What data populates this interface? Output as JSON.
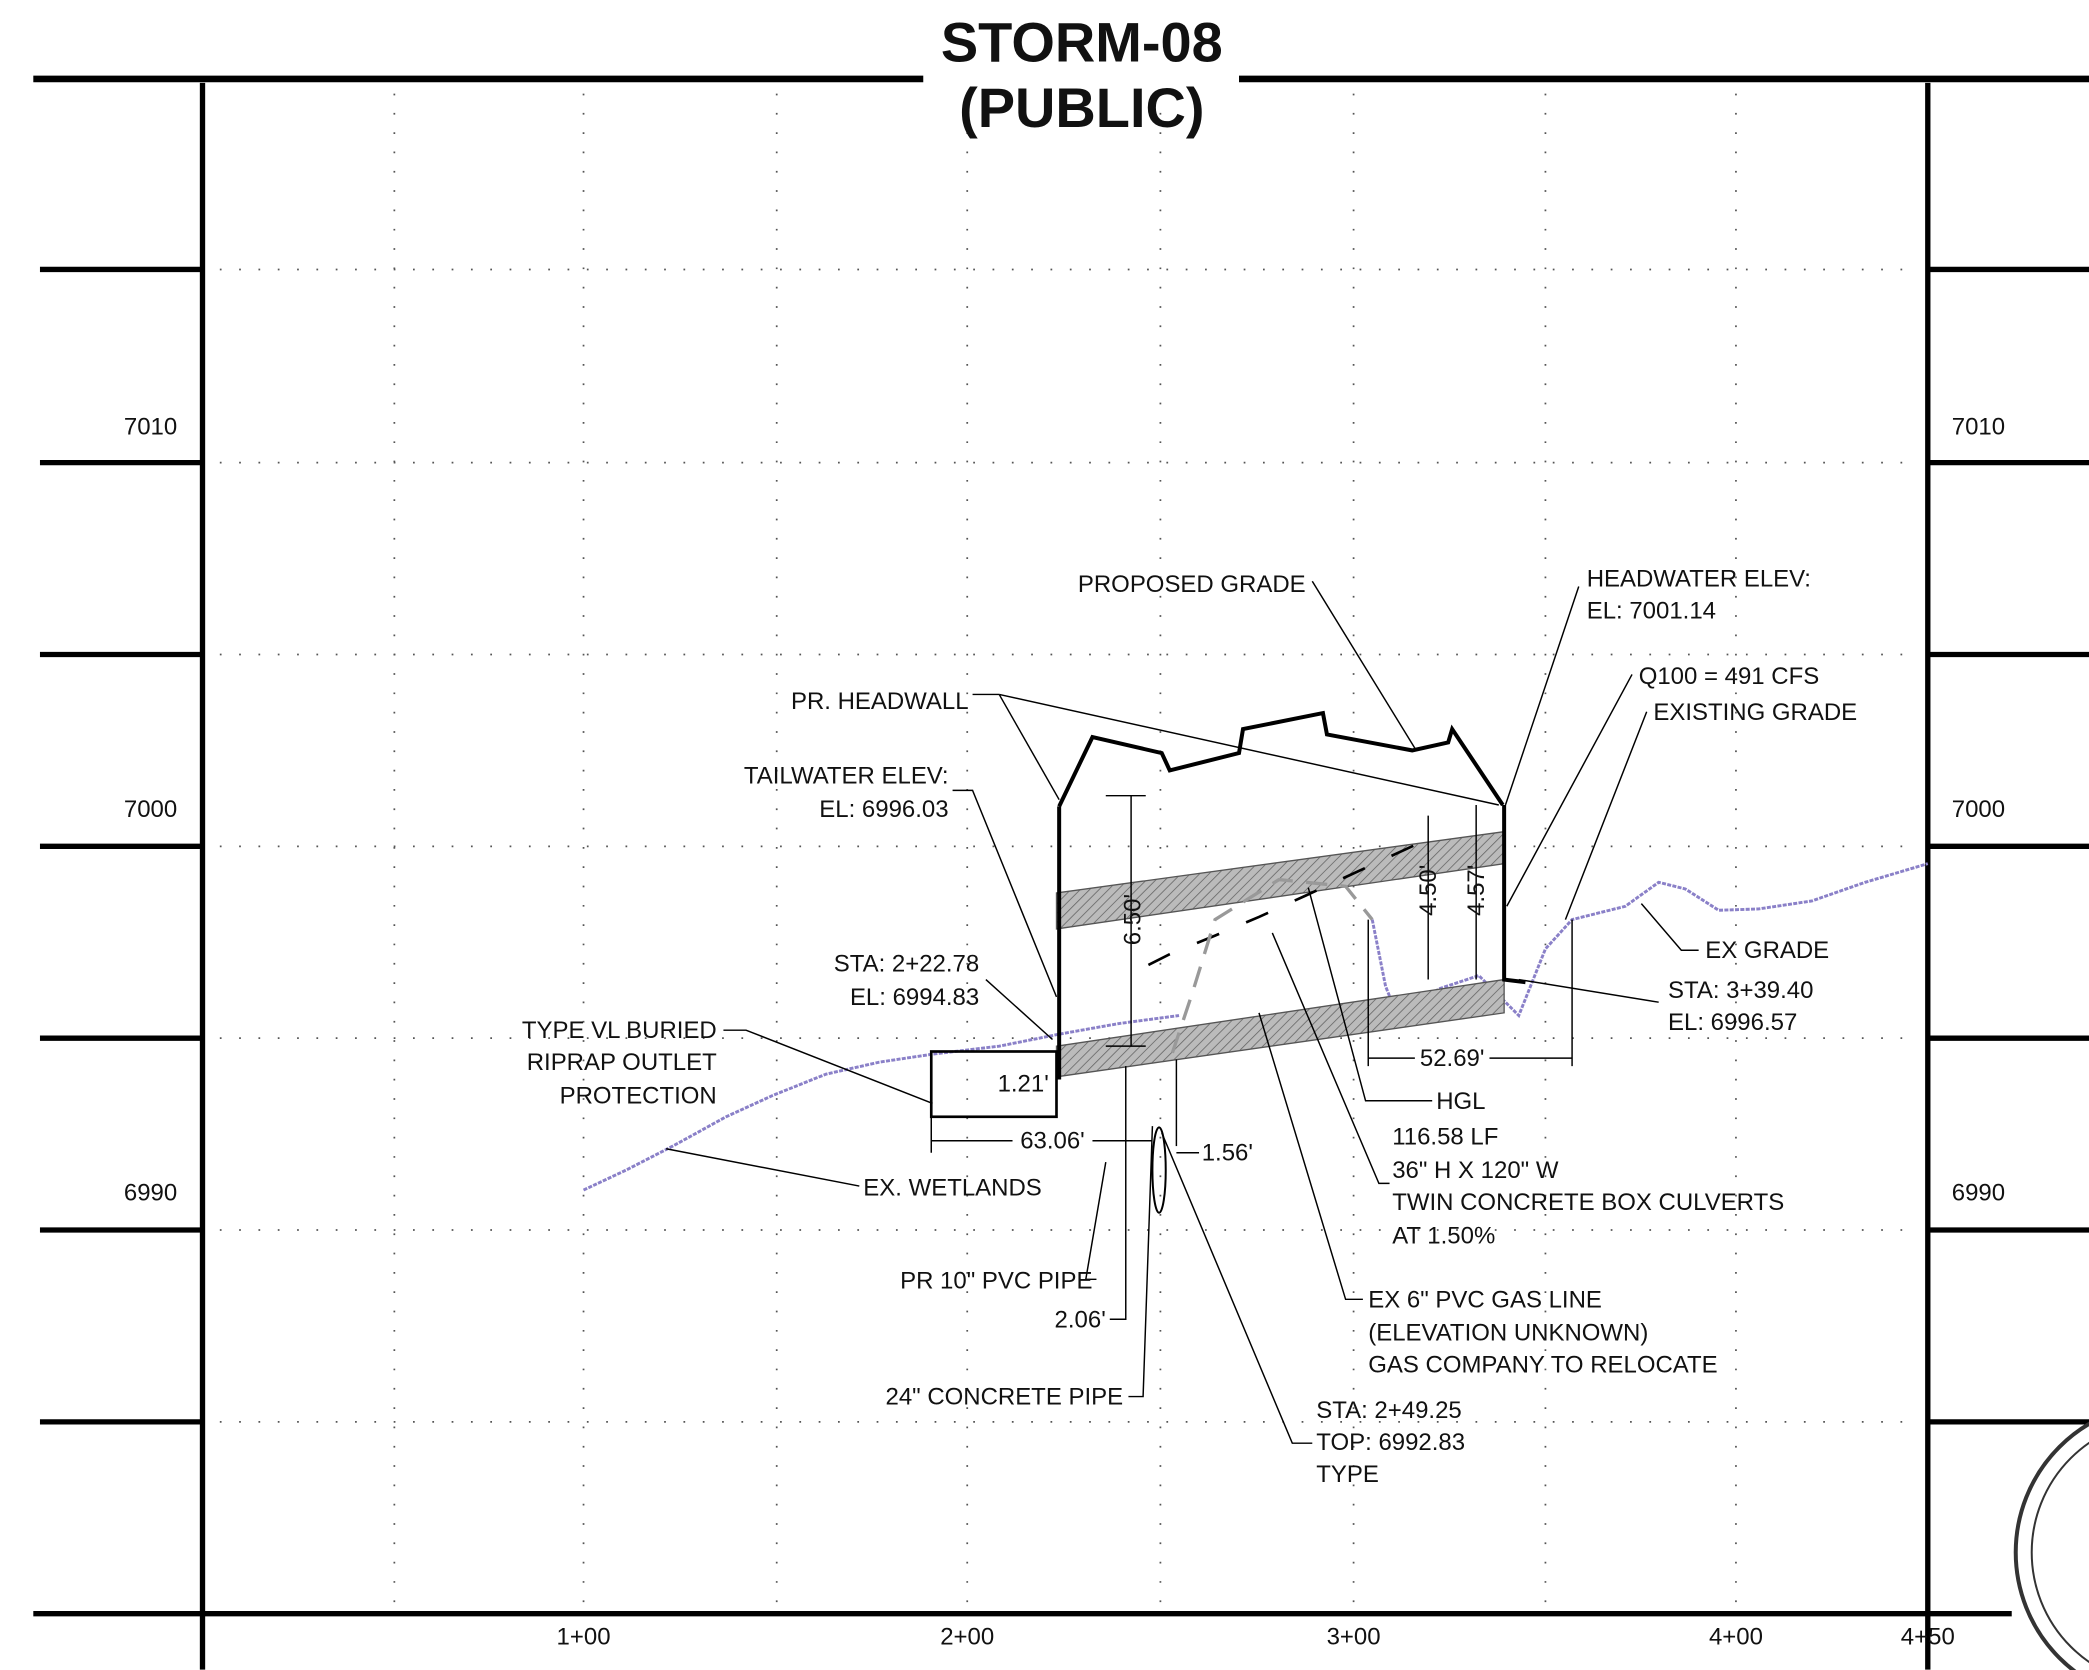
{
  "title": {
    "line1": "STORM-08",
    "line2": "(PUBLIC)"
  },
  "elevations": [
    "7010",
    "7000",
    "6990"
  ],
  "stations": [
    "1+00",
    "2+00",
    "3+00",
    "4+00",
    "4+50"
  ],
  "annotations": {
    "proposed_grade": "PROPOSED GRADE",
    "headwater": [
      "HEADWATER ELEV:",
      "EL: 7001.14"
    ],
    "q100": "Q100 = 491 CFS",
    "existing_grade": "EXISTING GRADE",
    "pr_headwall": "PR. HEADWALL",
    "tailwater": [
      "TAILWATER ELEV:",
      "EL: 6996.03"
    ],
    "sta_inlet": [
      "STA: 2+22.78",
      "EL: 6994.83"
    ],
    "riprap": [
      "TYPE VL BURIED",
      "RIPRAP OUTLET",
      "PROTECTION"
    ],
    "ex_grade": "EX GRADE",
    "sta_outlet": [
      "STA: 3+39.40",
      "EL: 6996.57"
    ],
    "dim_52": "52.69'",
    "hgl": "HGL",
    "culvert": [
      "116.58  LF",
      "36\" H X 120\" W",
      "TWIN CONCRETE BOX CULVERTS",
      "AT 1.50%"
    ],
    "dim_121": "1.21'",
    "dim_6306": "63.06'",
    "dim_156": "1.56'",
    "ex_wetlands": "EX. WETLANDS",
    "dim_650": "6.50'",
    "dim_450": "4.50'",
    "dim_457": "4.57'",
    "pvc_pipe": "PR 10\" PVC PIPE",
    "dim_206": "2.06'",
    "gas_line": [
      "EX 6\" PVC GAS LINE",
      "(ELEVATION UNKNOWN)",
      "GAS COMPANY TO RELOCATE"
    ],
    "concrete_pipe": "24\" CONCRETE PIPE",
    "sta_crossing": [
      "STA: 2+49.25",
      "TOP: 6992.83",
      "TYPE"
    ]
  }
}
